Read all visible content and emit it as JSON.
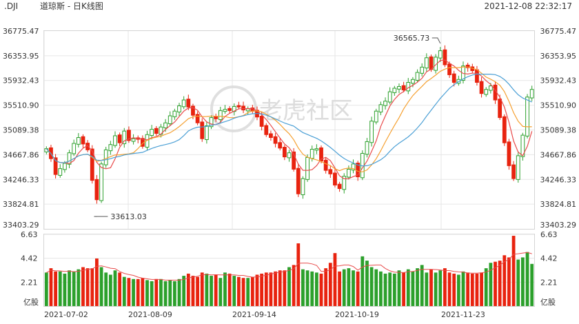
{
  "header": {
    "symbol": ".DJI",
    "title": "道琼斯 - 日K线图",
    "datetime": "2021-12-08 22:32:17"
  },
  "watermark": "老虎社区",
  "colors": {
    "up": "#2ca02c",
    "down": "#e8230f",
    "ma1": "#e84a4a",
    "ma2": "#f5a030",
    "ma3": "#4a9fd5",
    "grid": "#e6e6e6"
  },
  "chart_data": [
    {
      "type": "candlestick",
      "title": "道琼斯 - 日K线图",
      "price_ticks": [
        "36775.47",
        "36353.95",
        "35932.43",
        "35510.90",
        "35089.38",
        "34667.86",
        "34246.33",
        "33824.81",
        "33403.29"
      ],
      "ylim": [
        33403.29,
        36775.47
      ],
      "x_labels": [
        "2021-07-02",
        "2021-08-09",
        "2021-09-14",
        "2021-10-19",
        "2021-11-23"
      ],
      "annotations": [
        {
          "label": "36565.73",
          "value": 36565.73,
          "kind": "high"
        },
        {
          "label": "33613.03",
          "value": 33613.03,
          "kind": "low"
        }
      ],
      "closes": [
        34770,
        34600,
        34330,
        34430,
        34520,
        34700,
        34860,
        34960,
        34850,
        34750,
        34230,
        33900,
        34510,
        34750,
        34840,
        34990,
        34870,
        35070,
        34910,
        34940,
        34930,
        34810,
        35010,
        35100,
        35030,
        35140,
        35210,
        35330,
        35410,
        35500,
        35600,
        35480,
        35340,
        35210,
        34940,
        35160,
        35300,
        35280,
        35420,
        35440,
        35420,
        35490,
        35480,
        35430,
        35450,
        35410,
        35310,
        35150,
        35010,
        34960,
        34860,
        34780,
        34630,
        34700,
        34420,
        34000,
        34260,
        34620,
        34760,
        34770,
        34560,
        34400,
        34340,
        34150,
        34090,
        34300,
        34420,
        34510,
        34290,
        34690,
        34890,
        35240,
        35410,
        35520,
        35580,
        35740,
        35800,
        35830,
        35770,
        35900,
        35950,
        36070,
        36160,
        36320,
        36120,
        36330,
        36440,
        36200,
        36030,
        35900,
        35950,
        36180,
        36150,
        36100,
        35900,
        35710,
        35780,
        35840,
        35600,
        35300,
        34870,
        34480,
        34260,
        34650,
        35000,
        35650,
        35780
      ],
      "volume_ticks": [
        "6.63",
        "4.42",
        "2.21"
      ],
      "volume_unit": "亿股",
      "volume_ylim": [
        0,
        6.63
      ],
      "volumes": [
        3.1,
        3.5,
        3.2,
        3.2,
        3.0,
        3.3,
        3.2,
        3.4,
        3.6,
        3.5,
        3.5,
        4.4,
        3.6,
        3.1,
        2.9,
        3.3,
        3.1,
        2.7,
        2.6,
        2.5,
        2.5,
        2.6,
        2.4,
        2.3,
        2.5,
        2.5,
        2.3,
        2.4,
        2.3,
        2.5,
        2.8,
        3.0,
        2.8,
        2.7,
        3.1,
        3.0,
        2.8,
        2.9,
        2.6,
        3.1,
        3.0,
        2.8,
        2.7,
        2.6,
        2.6,
        2.7,
        2.9,
        3.0,
        3.1,
        3.1,
        3.2,
        3.3,
        3.3,
        3.6,
        3.8,
        5.8,
        3.4,
        3.3,
        3.2,
        3.1,
        3.0,
        3.5,
        4.0,
        4.9,
        3.2,
        3.4,
        3.5,
        3.3,
        3.2,
        4.6,
        4.2,
        3.6,
        3.4,
        3.2,
        3.0,
        3.1,
        3.0,
        3.3,
        3.1,
        3.4,
        3.2,
        3.5,
        3.8,
        3.1,
        3.4,
        3.1,
        3.3,
        3.5,
        3.1,
        3.0,
        2.9,
        3.2,
        3.1,
        3.0,
        3.0,
        3.1,
        3.5,
        4.0,
        4.1,
        4.2,
        4.7,
        4.5,
        6.5,
        4.3,
        4.5,
        5.0,
        3.9
      ],
      "time_range": [
        "2021-07-02",
        "2021-12-08"
      ]
    }
  ]
}
